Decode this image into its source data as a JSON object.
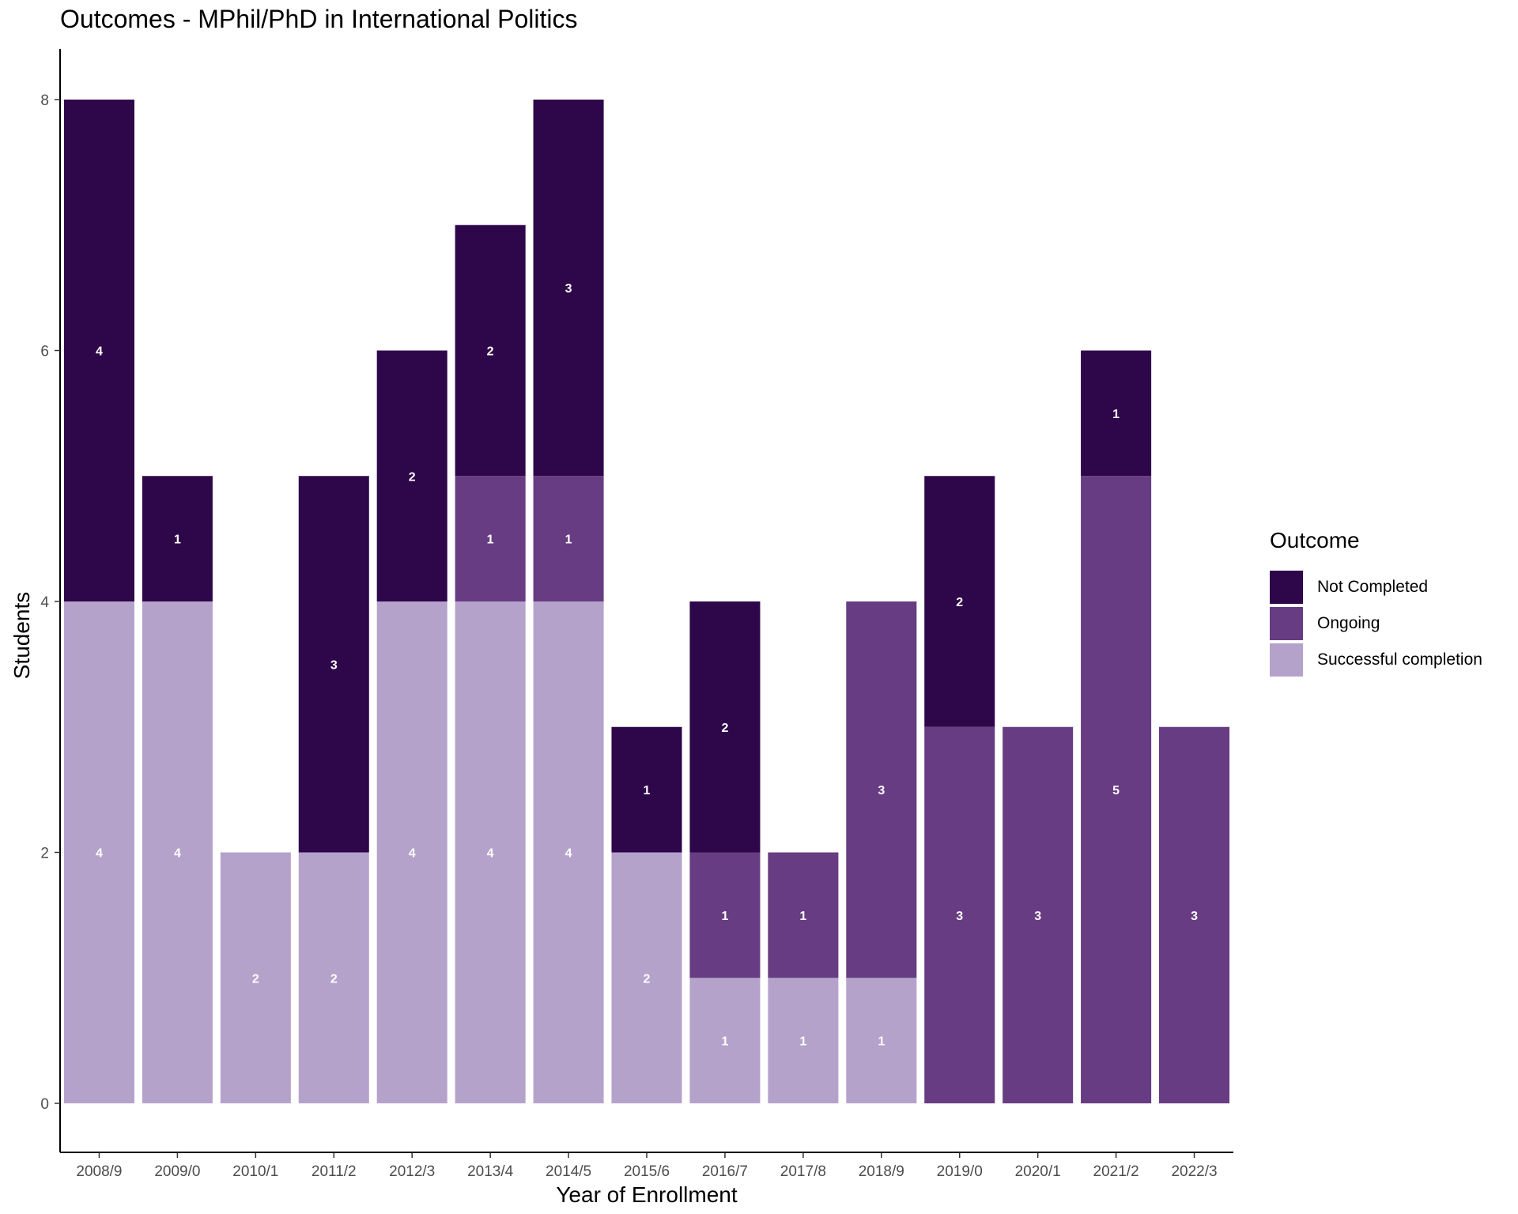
{
  "chart_data": {
    "type": "bar",
    "stacked": true,
    "title": "Outcomes - MPhil/PhD in International Politics",
    "xlabel": "Year of Enrollment",
    "ylabel": "Students",
    "ylim": [
      0,
      8
    ],
    "yticks": [
      0,
      2,
      4,
      6,
      8
    ],
    "grid": false,
    "legend_position": "right",
    "legend_title": "Outcome",
    "categories": [
      "2008/9",
      "2009/0",
      "2010/1",
      "2011/2",
      "2012/3",
      "2013/4",
      "2014/5",
      "2015/6",
      "2016/7",
      "2017/8",
      "2018/9",
      "2019/0",
      "2020/1",
      "2021/2",
      "2022/3"
    ],
    "series": [
      {
        "name": "Successful completion",
        "color": "#b5a2cb",
        "values": [
          4,
          4,
          2,
          2,
          4,
          4,
          4,
          2,
          1,
          1,
          1,
          0,
          0,
          0,
          0
        ]
      },
      {
        "name": "Ongoing",
        "color": "#673c82",
        "values": [
          0,
          0,
          0,
          0,
          0,
          1,
          1,
          0,
          1,
          1,
          3,
          3,
          3,
          5,
          3
        ]
      },
      {
        "name": "Not Completed",
        "color": "#2e074a",
        "values": [
          4,
          1,
          0,
          3,
          2,
          2,
          3,
          1,
          2,
          0,
          0,
          2,
          0,
          1,
          0
        ]
      }
    ],
    "legend_order": [
      "Not Completed",
      "Ongoing",
      "Successful completion"
    ]
  }
}
